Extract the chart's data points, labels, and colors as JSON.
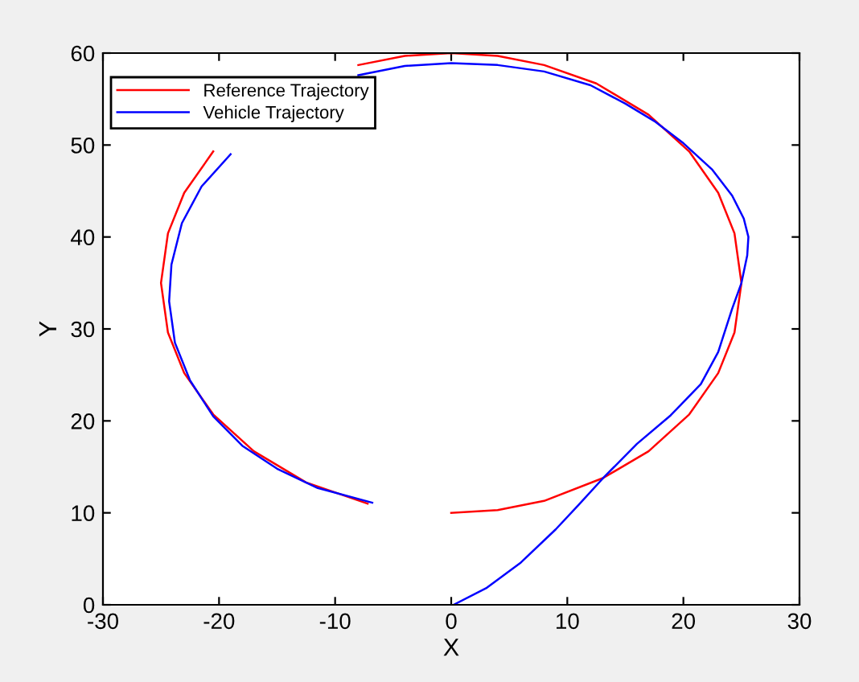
{
  "chart_data": {
    "type": "line",
    "xlabel": "X",
    "ylabel": "Y",
    "xlim": [
      -30,
      30
    ],
    "ylim": [
      0,
      60
    ],
    "xticks": [
      -30,
      -20,
      -10,
      0,
      10,
      20,
      30
    ],
    "yticks": [
      0,
      10,
      20,
      30,
      40,
      50,
      60
    ],
    "grid": false,
    "legend": "top left",
    "line_style": "solid",
    "marker": "none",
    "series": [
      {
        "name": "Reference Trajectory",
        "color": "#ff0000",
        "x": [
          0,
          4,
          8,
          13.1,
          17,
          20.5,
          23,
          24.4,
          25,
          24.4,
          23,
          20.5,
          17,
          12.5,
          8,
          4,
          0,
          -4,
          -8,
          -12.5,
          -17,
          -20.5,
          -23,
          -24.4,
          -25,
          -24.4,
          -23,
          -20.5,
          -17,
          -12.5,
          -7.2
        ],
        "values": [
          10,
          10.3,
          11.3,
          13.8,
          16.7,
          20.7,
          25.2,
          29.6,
          35,
          40.4,
          44.8,
          49.3,
          53.3,
          56.7,
          58.7,
          59.7,
          60,
          59.7,
          58.7,
          null,
          null,
          49.3,
          44.8,
          40.4,
          35,
          29.6,
          25.2,
          20.7,
          16.7,
          13.3,
          11
        ]
      },
      {
        "name": "Vehicle Trajectory",
        "color": "#0000ff",
        "x": [
          0.2,
          3,
          6,
          9,
          11,
          13.1,
          16,
          18.9,
          21.5,
          23,
          24.2,
          25,
          25.5,
          25.6,
          25.2,
          24.2,
          22.5,
          20,
          17.5,
          15,
          12,
          8,
          4,
          0,
          -4,
          -8,
          -12,
          -16,
          -19,
          -21.5,
          -23.2,
          -24.1,
          -24.3,
          -23.8,
          -22.5,
          -20.5,
          -18,
          -15,
          -11.5,
          -6.8
        ],
        "values": [
          0,
          1.8,
          4.6,
          8.2,
          10.9,
          13.8,
          17.5,
          20.6,
          24,
          27.5,
          32.2,
          35,
          38,
          40,
          42,
          44.5,
          47.3,
          50.2,
          52.6,
          54.5,
          56.5,
          58,
          58.7,
          58.9,
          58.6,
          57.6,
          null,
          null,
          49,
          45.5,
          41.5,
          37,
          33,
          28.5,
          24.4,
          20.5,
          17.3,
          14.8,
          12.7,
          11.1
        ]
      }
    ]
  }
}
